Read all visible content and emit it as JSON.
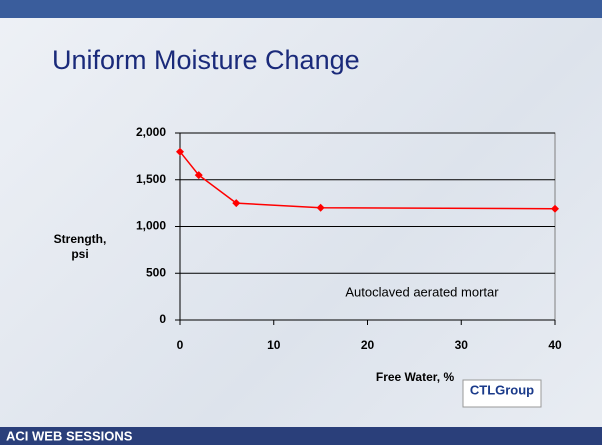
{
  "slide_title": "Uniform Moisture Change",
  "chart_data": {
    "type": "line",
    "x": [
      0,
      2,
      6,
      15,
      40
    ],
    "series": [
      {
        "name": "Autoclaved aerated mortar",
        "color": "#ff0000",
        "values": [
          1800,
          1550,
          1250,
          1200,
          1190
        ]
      }
    ],
    "annotation": "Autoclaved aerated mortar",
    "xlabel": "Free Water, %",
    "ylabel": "Strength, psi",
    "xlim": [
      0,
      40
    ],
    "xticks": [
      0,
      10,
      20,
      30,
      40
    ],
    "ylim": [
      0,
      2000
    ],
    "yticks": [
      0,
      500,
      {
        "value": 1000,
        "label": "1,000"
      },
      {
        "value": 1500,
        "label": "1,500"
      },
      {
        "value": 2000,
        "label": "2,000"
      }
    ],
    "grid": true
  },
  "logo": "CTLGroup",
  "footer": "ACI WEB SESSIONS"
}
